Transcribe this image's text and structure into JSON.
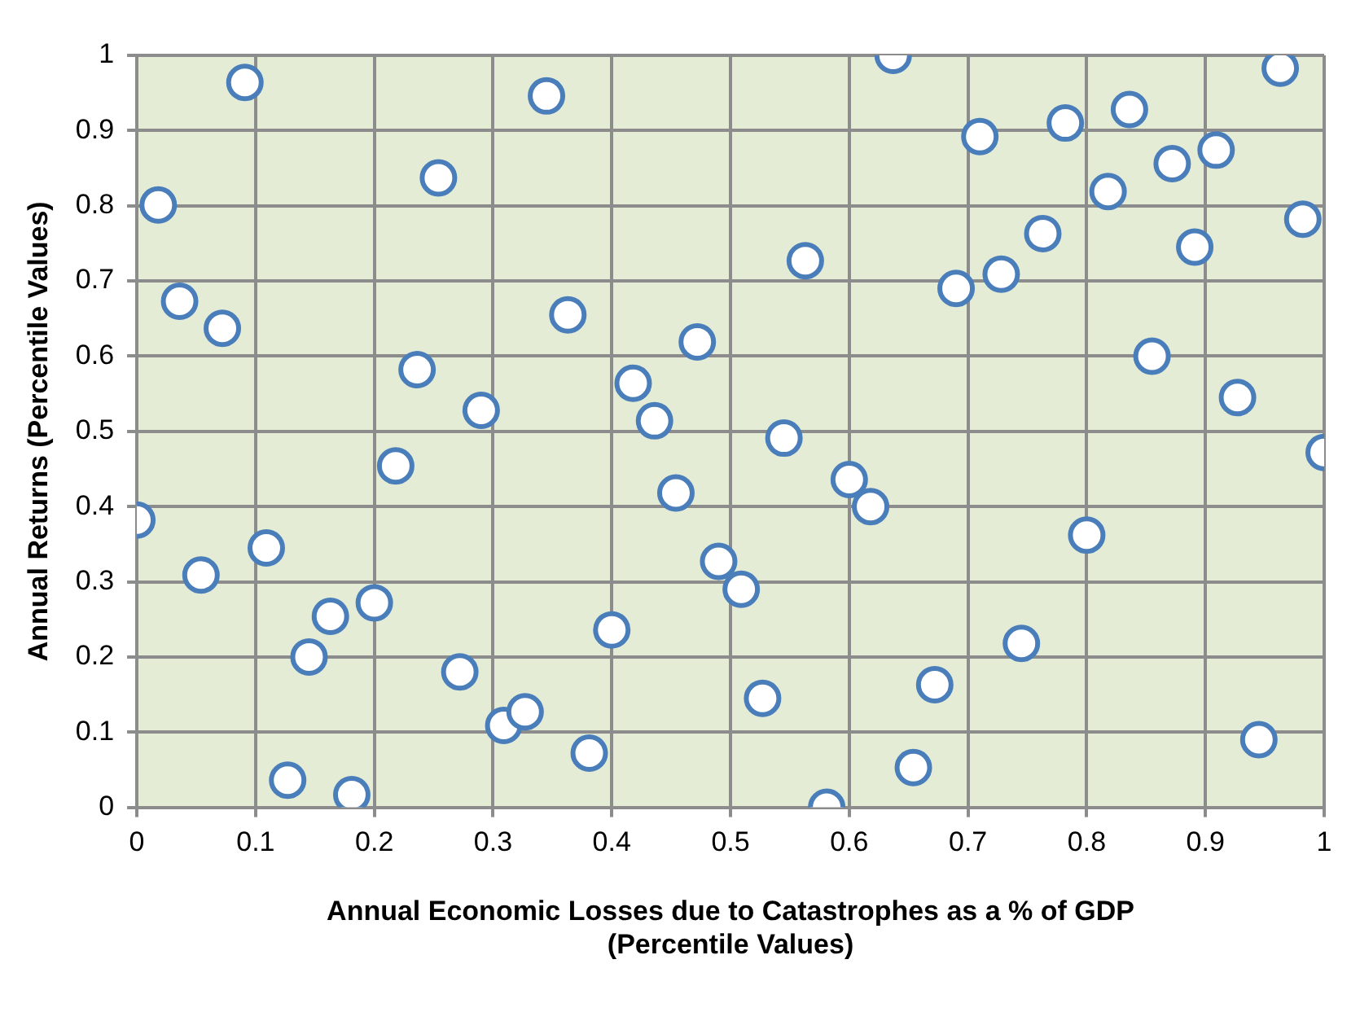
{
  "chart_data": {
    "type": "scatter",
    "xlabel": "Annual Economic Losses due to Catastrophes as a % of GDP (Percentile Values)",
    "ylabel": "Annual Returns (Percentile Values)",
    "x": [
      0,
      0.018,
      0.036,
      0.054,
      0.072,
      0.091,
      0.109,
      0.127,
      0.145,
      0.163,
      0.181,
      0.2,
      0.218,
      0.236,
      0.254,
      0.272,
      0.29,
      0.309,
      0.327,
      0.345,
      0.363,
      0.381,
      0.4,
      0.418,
      0.436,
      0.454,
      0.472,
      0.49,
      0.509,
      0.527,
      0.545,
      0.563,
      0.581,
      0.6,
      0.618,
      0.637,
      0.654,
      0.672,
      0.69,
      0.71,
      0.728,
      0.745,
      0.763,
      0.782,
      0.8,
      0.818,
      0.836,
      0.855,
      0.872,
      0.891,
      0.909,
      0.927,
      0.945,
      0.963,
      0.982,
      1
    ],
    "values": [
      0.382,
      0.801,
      0.673,
      0.309,
      0.637,
      0.964,
      0.345,
      0.036,
      0.2,
      0.254,
      0.017,
      0.272,
      0.454,
      0.582,
      0.837,
      0.18,
      0.528,
      0.109,
      0.127,
      0.946,
      0.655,
      0.072,
      0.236,
      0.564,
      0.514,
      0.418,
      0.619,
      0.327,
      0.29,
      0.145,
      0.491,
      0.727,
      0,
      0.436,
      0.4,
      1,
      0.053,
      0.163,
      0.69,
      0.892,
      0.709,
      0.218,
      0.763,
      0.91,
      0.362,
      0.819,
      0.928,
      0.6,
      0.856,
      0.745,
      0.874,
      0.545,
      0.09,
      0.983,
      0.782,
      0.472
    ],
    "color": "#4a7ebb",
    "marker": "circle",
    "grid": true,
    "xlim": [
      0,
      1
    ],
    "xticks": [
      0,
      0.1,
      0.2,
      0.3,
      0.4,
      0.5,
      0.6,
      0.7,
      0.8,
      0.9,
      1
    ],
    "ylim": [
      0,
      1
    ],
    "yticks": [
      0,
      0.1,
      0.2,
      0.3,
      0.4,
      0.5,
      0.6,
      0.7,
      0.8,
      0.9,
      1
    ]
  }
}
